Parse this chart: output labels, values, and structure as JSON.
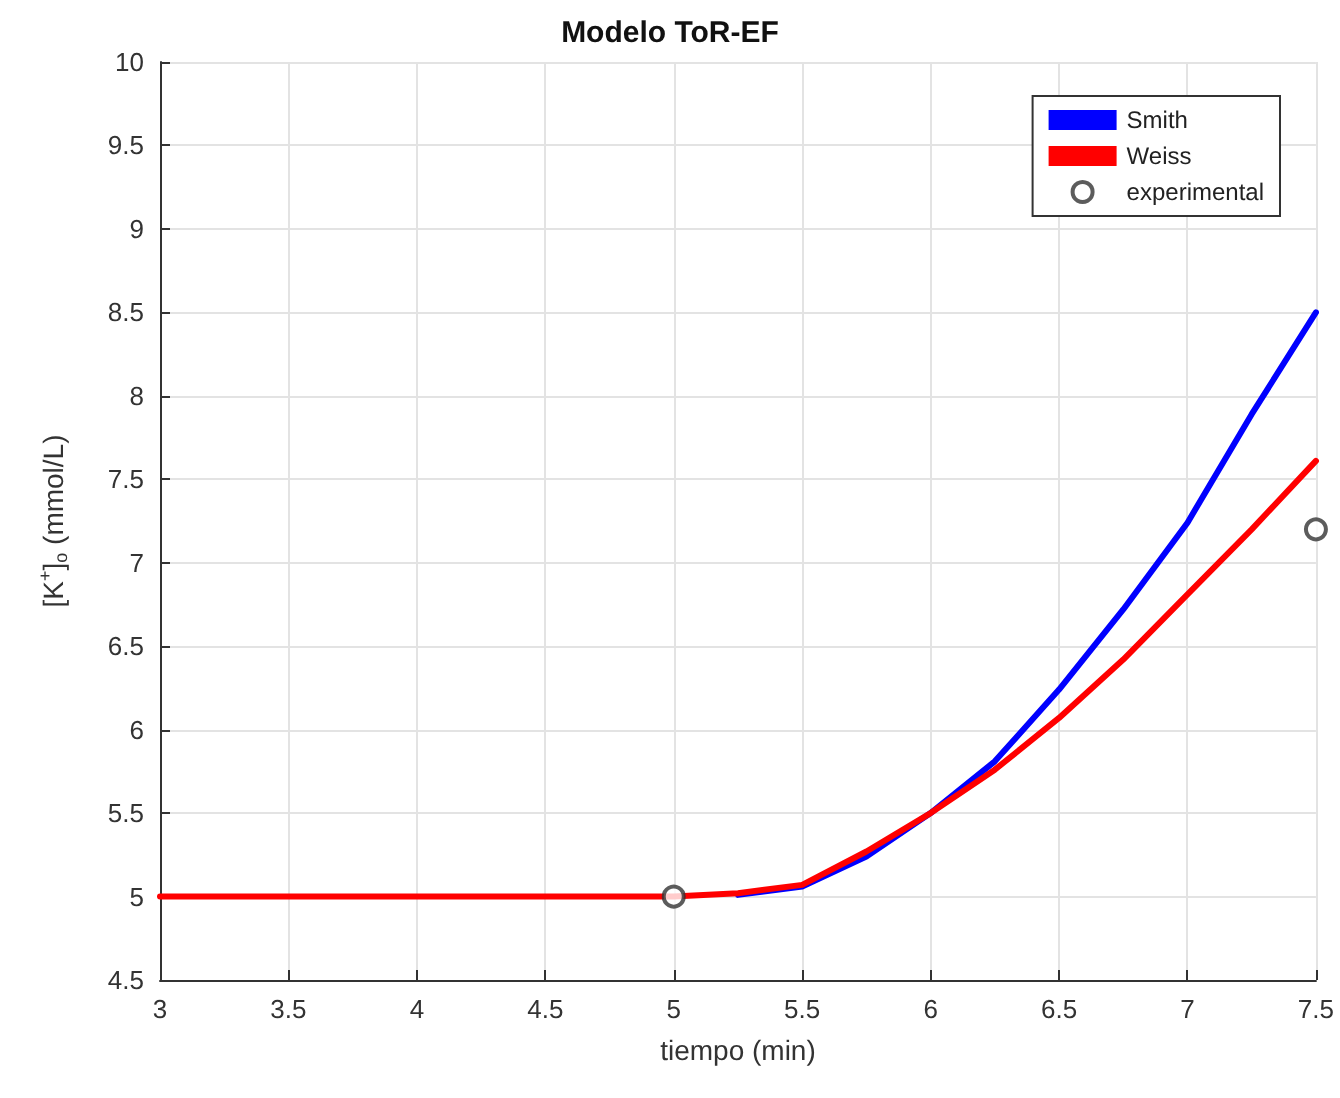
{
  "chart_data": {
    "type": "line",
    "title": "Modelo ToR-EF",
    "xlabel": "tiempo (min)",
    "ylabel": "[K$^{+}$]$_{o}$ (mmol/L)",
    "xlim": [
      3,
      7.5
    ],
    "xticks": [
      3,
      3.5,
      4,
      4.5,
      5,
      5.5,
      6,
      6.5,
      7,
      7.5
    ],
    "ylim": [
      4.5,
      10
    ],
    "yticks": [
      4.5,
      5,
      5.5,
      6,
      6.5,
      7,
      7.5,
      8,
      8.5,
      9,
      9.5,
      10
    ],
    "grid": true,
    "legend": "top right",
    "marker": "none",
    "line_style": "solid",
    "series": [
      {
        "name": "Smith",
        "color": "#0000ff",
        "x": [
          5.25,
          5.5,
          5.75,
          6,
          6.25,
          6.5,
          6.75,
          7,
          7.25,
          7.5
        ],
        "values": [
          5.01,
          5.06,
          5.24,
          5.5,
          5.81,
          6.24,
          6.72,
          7.24,
          7.89,
          8.5
        ]
      },
      {
        "name": "Weiss",
        "color": "#ff0000",
        "x": [
          3,
          4,
          5,
          5.25,
          5.5,
          5.75,
          6,
          6.25,
          6.5,
          6.75,
          7,
          7.25,
          7.5
        ],
        "values": [
          5,
          5,
          5,
          5.02,
          5.07,
          5.27,
          5.5,
          5.76,
          6.07,
          6.42,
          6.81,
          7.2,
          7.61
        ]
      },
      {
        "name": "experimental",
        "type": "scatter",
        "marker": "circle",
        "color": "#333333",
        "x": [
          5,
          7.5
        ],
        "values": [
          5,
          7.2
        ]
      }
    ]
  }
}
